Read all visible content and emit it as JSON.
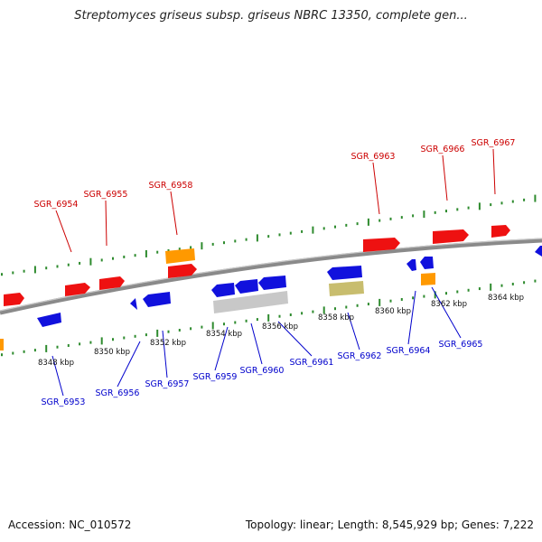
{
  "title": "Streptomyces griseus subsp. griseus NBRC 13350, complete gen...",
  "footer": {
    "accession": "Accession: NC_010572",
    "topology": "Topology: linear; Length: 8,545,929 bp; Genes: 7,222"
  },
  "colors": {
    "forward_gene": "#ee1111",
    "reverse_gene": "#1111dd",
    "orange_feature": "#ff9900",
    "gray_feature": "#c8c8c8",
    "olive_feature": "#c8bd6e",
    "backbone": "#8a8a8a",
    "tick": "#2e8b2e",
    "top_label": "#cc0000",
    "bottom_label": "#0000cc"
  },
  "scale_labels": [
    "8348 kbp",
    "8350 kbp",
    "8352 kbp",
    "8354 kbp",
    "8356 kbp",
    "8358 kbp",
    "8360 kbp",
    "8362 kbp",
    "8364 kbp"
  ],
  "top_genes": [
    "SGR_6954",
    "SGR_6955",
    "SGR_6958",
    "SGR_6963",
    "SGR_6966",
    "SGR_6967"
  ],
  "bottom_genes": [
    "SGR_6953",
    "SGR_6956",
    "SGR_6957",
    "SGR_6959",
    "SGR_6960",
    "SGR_6961",
    "SGR_6962",
    "SGR_6964",
    "SGR_6965"
  ]
}
